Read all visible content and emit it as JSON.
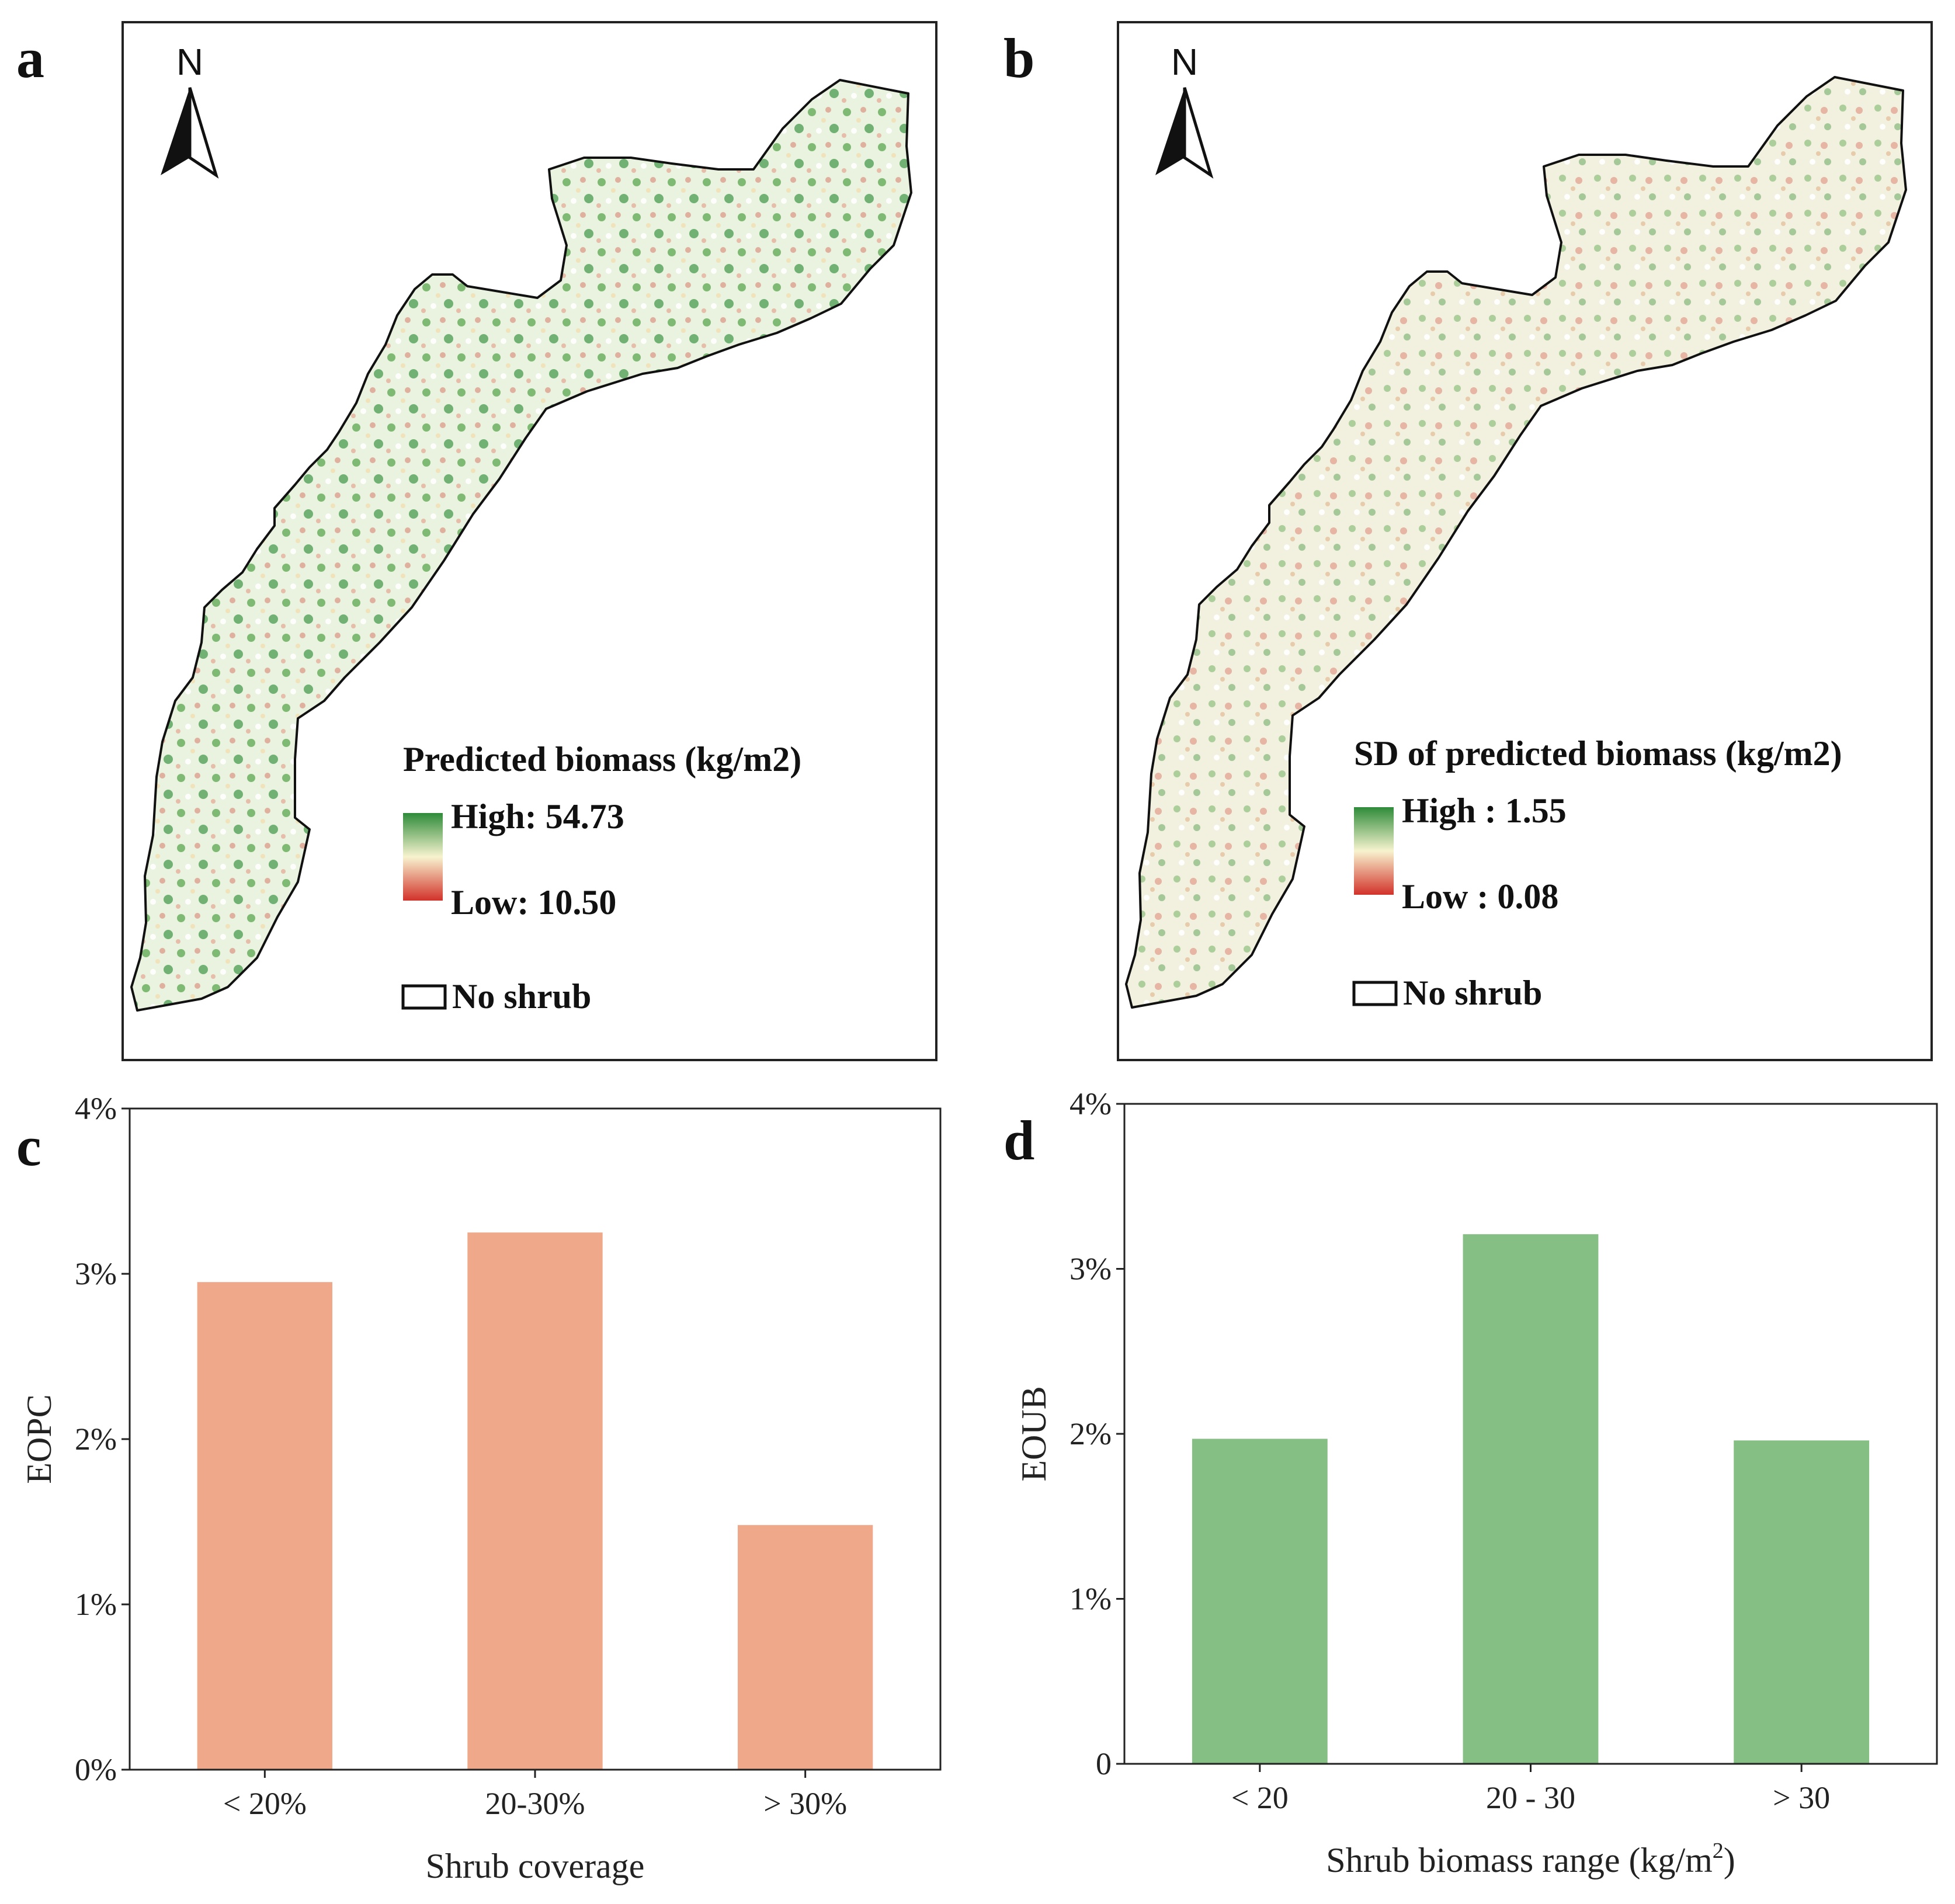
{
  "panels": {
    "a": {
      "label": "a",
      "north": "N",
      "legend_title": "Predicted biomass (kg/m2)",
      "high_label": "High: 54.73",
      "low_label": "Low: 10.50",
      "no_shrub_label": "No shrub"
    },
    "b": {
      "label": "b",
      "north": "N",
      "legend_title": "SD of predicted biomass (kg/m2)",
      "high_label": "High : 1.55",
      "low_label": "Low : 0.08",
      "no_shrub_label": "No shrub"
    },
    "c": {
      "label": "c"
    },
    "d": {
      "label": "d"
    }
  },
  "colors": {
    "map_high": "#2e8b3a",
    "map_mid": "#f7f3cf",
    "map_low": "#d2322a",
    "bar_c": "#efa98a",
    "bar_d": "#86bf83"
  },
  "chart_data": [
    {
      "panel": "c",
      "type": "bar",
      "categories": [
        "< 20%",
        "20-30%",
        "> 30%"
      ],
      "values": [
        2.95,
        3.25,
        1.48
      ],
      "xlabel": "Shrub coverage",
      "ylabel": "EOPC",
      "ylim": [
        0,
        4
      ],
      "yticks": [
        0,
        1,
        2,
        3,
        4
      ],
      "ytick_labels": [
        "0%",
        "1%",
        "2%",
        "3%",
        "4%"
      ],
      "color": "#efa98a",
      "grid": false
    },
    {
      "panel": "d",
      "type": "bar",
      "categories": [
        "< 20",
        "20 - 30",
        "> 30"
      ],
      "values": [
        1.97,
        3.21,
        1.96
      ],
      "xlabel": "Shrub biomass range (kg/m",
      "xlabel_sup": "2",
      "xlabel_end": ")",
      "ylabel": "EOUB",
      "ylim": [
        0,
        4
      ],
      "yticks": [
        0,
        1,
        2,
        3,
        4
      ],
      "ytick_labels": [
        "0",
        "1%",
        "2%",
        "3%",
        "4%"
      ],
      "color": "#86bf83",
      "grid": false
    }
  ]
}
